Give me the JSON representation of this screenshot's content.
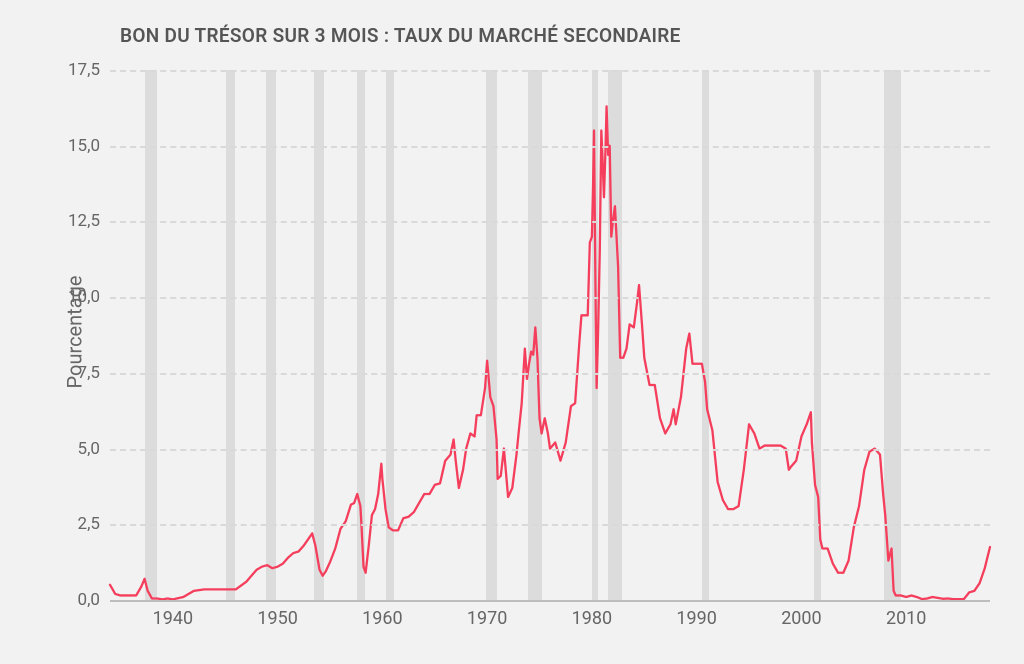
{
  "chart": {
    "type": "line",
    "title": "BON DU TRÉSOR SUR 3 MOIS : TAUX DU MARCHÉ SECONDAIRE",
    "ylabel": "Pourcentage",
    "title_fontsize": 19,
    "ylabel_fontsize": 20,
    "tick_fontsize": 17,
    "background_color": "#f2f2f2",
    "grid_color": "#d9d9d9",
    "axis_color": "#bdbdbd",
    "line_color": "#f43e5c",
    "line_width": 2.3,
    "band_color": "#dcdcdc",
    "xlim": [
      1934,
      2018
    ],
    "ylim": [
      0,
      17.5
    ],
    "ytick_step": 2.5,
    "ytick_labels": [
      "0,0",
      "2,5",
      "5,0",
      "7,5",
      "10,0",
      "12,5",
      "15,0",
      "17,5"
    ],
    "xtick_step": 10,
    "xtick_start": 1940,
    "xtick_end": 2010,
    "recession_bands": [
      [
        1937.3,
        1938.5
      ],
      [
        1945.1,
        1945.9
      ],
      [
        1948.9,
        1949.8
      ],
      [
        1953.5,
        1954.4
      ],
      [
        1957.6,
        1958.3
      ],
      [
        1960.3,
        1961.1
      ],
      [
        1969.9,
        1970.9
      ],
      [
        1973.9,
        1975.2
      ],
      [
        1980.0,
        1980.6
      ],
      [
        1981.5,
        1982.9
      ],
      [
        1990.5,
        1991.2
      ],
      [
        2001.2,
        2001.9
      ],
      [
        2007.9,
        2009.5
      ]
    ],
    "series": [
      {
        "x": 1934.0,
        "y": 0.5
      },
      {
        "x": 1934.5,
        "y": 0.2
      },
      {
        "x": 1935.0,
        "y": 0.15
      },
      {
        "x": 1935.5,
        "y": 0.15
      },
      {
        "x": 1936.0,
        "y": 0.15
      },
      {
        "x": 1936.5,
        "y": 0.15
      },
      {
        "x": 1937.0,
        "y": 0.45
      },
      {
        "x": 1937.3,
        "y": 0.7
      },
      {
        "x": 1937.6,
        "y": 0.3
      },
      {
        "x": 1938.0,
        "y": 0.05
      },
      {
        "x": 1938.5,
        "y": 0.05
      },
      {
        "x": 1939.0,
        "y": 0.02
      },
      {
        "x": 1939.5,
        "y": 0.05
      },
      {
        "x": 1940.0,
        "y": 0.02
      },
      {
        "x": 1941.0,
        "y": 0.1
      },
      {
        "x": 1942.0,
        "y": 0.3
      },
      {
        "x": 1943.0,
        "y": 0.35
      },
      {
        "x": 1944.0,
        "y": 0.35
      },
      {
        "x": 1945.0,
        "y": 0.35
      },
      {
        "x": 1946.0,
        "y": 0.35
      },
      {
        "x": 1947.0,
        "y": 0.6
      },
      {
        "x": 1947.5,
        "y": 0.8
      },
      {
        "x": 1948.0,
        "y": 1.0
      },
      {
        "x": 1948.5,
        "y": 1.1
      },
      {
        "x": 1949.0,
        "y": 1.15
      },
      {
        "x": 1949.5,
        "y": 1.05
      },
      {
        "x": 1950.0,
        "y": 1.1
      },
      {
        "x": 1950.5,
        "y": 1.2
      },
      {
        "x": 1951.0,
        "y": 1.4
      },
      {
        "x": 1951.5,
        "y": 1.55
      },
      {
        "x": 1952.0,
        "y": 1.6
      },
      {
        "x": 1952.5,
        "y": 1.8
      },
      {
        "x": 1953.0,
        "y": 2.05
      },
      {
        "x": 1953.3,
        "y": 2.2
      },
      {
        "x": 1953.6,
        "y": 1.8
      },
      {
        "x": 1954.0,
        "y": 1.0
      },
      {
        "x": 1954.3,
        "y": 0.8
      },
      {
        "x": 1954.6,
        "y": 0.95
      },
      {
        "x": 1955.0,
        "y": 1.25
      },
      {
        "x": 1955.5,
        "y": 1.7
      },
      {
        "x": 1956.0,
        "y": 2.35
      },
      {
        "x": 1956.5,
        "y": 2.6
      },
      {
        "x": 1957.0,
        "y": 3.15
      },
      {
        "x": 1957.3,
        "y": 3.2
      },
      {
        "x": 1957.6,
        "y": 3.5
      },
      {
        "x": 1957.9,
        "y": 3.1
      },
      {
        "x": 1958.0,
        "y": 2.5
      },
      {
        "x": 1958.2,
        "y": 1.1
      },
      {
        "x": 1958.4,
        "y": 0.9
      },
      {
        "x": 1958.7,
        "y": 1.8
      },
      {
        "x": 1959.0,
        "y": 2.8
      },
      {
        "x": 1959.3,
        "y": 3.0
      },
      {
        "x": 1959.6,
        "y": 3.5
      },
      {
        "x": 1959.9,
        "y": 4.5
      },
      {
        "x": 1960.0,
        "y": 4.0
      },
      {
        "x": 1960.3,
        "y": 3.0
      },
      {
        "x": 1960.6,
        "y": 2.4
      },
      {
        "x": 1961.0,
        "y": 2.3
      },
      {
        "x": 1961.5,
        "y": 2.3
      },
      {
        "x": 1962.0,
        "y": 2.7
      },
      {
        "x": 1962.5,
        "y": 2.75
      },
      {
        "x": 1963.0,
        "y": 2.9
      },
      {
        "x": 1963.5,
        "y": 3.2
      },
      {
        "x": 1964.0,
        "y": 3.5
      },
      {
        "x": 1964.5,
        "y": 3.5
      },
      {
        "x": 1965.0,
        "y": 3.8
      },
      {
        "x": 1965.5,
        "y": 3.85
      },
      {
        "x": 1966.0,
        "y": 4.6
      },
      {
        "x": 1966.5,
        "y": 4.8
      },
      {
        "x": 1966.8,
        "y": 5.3
      },
      {
        "x": 1967.0,
        "y": 4.6
      },
      {
        "x": 1967.3,
        "y": 3.7
      },
      {
        "x": 1967.7,
        "y": 4.3
      },
      {
        "x": 1968.0,
        "y": 5.0
      },
      {
        "x": 1968.4,
        "y": 5.5
      },
      {
        "x": 1968.8,
        "y": 5.4
      },
      {
        "x": 1969.0,
        "y": 6.1
      },
      {
        "x": 1969.4,
        "y": 6.1
      },
      {
        "x": 1969.8,
        "y": 7.0
      },
      {
        "x": 1970.0,
        "y": 7.9
      },
      {
        "x": 1970.3,
        "y": 6.7
      },
      {
        "x": 1970.6,
        "y": 6.4
      },
      {
        "x": 1970.9,
        "y": 5.3
      },
      {
        "x": 1971.0,
        "y": 4.0
      },
      {
        "x": 1971.3,
        "y": 4.1
      },
      {
        "x": 1971.6,
        "y": 5.0
      },
      {
        "x": 1972.0,
        "y": 3.4
      },
      {
        "x": 1972.4,
        "y": 3.7
      },
      {
        "x": 1972.8,
        "y": 4.8
      },
      {
        "x": 1973.0,
        "y": 5.5
      },
      {
        "x": 1973.3,
        "y": 6.5
      },
      {
        "x": 1973.6,
        "y": 8.3
      },
      {
        "x": 1973.8,
        "y": 7.3
      },
      {
        "x": 1974.0,
        "y": 7.8
      },
      {
        "x": 1974.2,
        "y": 8.2
      },
      {
        "x": 1974.4,
        "y": 8.1
      },
      {
        "x": 1974.6,
        "y": 9.0
      },
      {
        "x": 1974.8,
        "y": 8.0
      },
      {
        "x": 1975.0,
        "y": 6.0
      },
      {
        "x": 1975.2,
        "y": 5.5
      },
      {
        "x": 1975.5,
        "y": 6.0
      },
      {
        "x": 1975.8,
        "y": 5.5
      },
      {
        "x": 1976.0,
        "y": 5.0
      },
      {
        "x": 1976.5,
        "y": 5.2
      },
      {
        "x": 1977.0,
        "y": 4.6
      },
      {
        "x": 1977.5,
        "y": 5.2
      },
      {
        "x": 1978.0,
        "y": 6.4
      },
      {
        "x": 1978.4,
        "y": 6.5
      },
      {
        "x": 1978.8,
        "y": 8.5
      },
      {
        "x": 1979.0,
        "y": 9.4
      },
      {
        "x": 1979.3,
        "y": 9.4
      },
      {
        "x": 1979.6,
        "y": 9.4
      },
      {
        "x": 1979.8,
        "y": 11.8
      },
      {
        "x": 1980.0,
        "y": 12.0
      },
      {
        "x": 1980.1,
        "y": 13.5
      },
      {
        "x": 1980.2,
        "y": 15.5
      },
      {
        "x": 1980.35,
        "y": 10.0
      },
      {
        "x": 1980.45,
        "y": 7.0
      },
      {
        "x": 1980.6,
        "y": 9.0
      },
      {
        "x": 1980.75,
        "y": 11.5
      },
      {
        "x": 1980.9,
        "y": 15.5
      },
      {
        "x": 1981.0,
        "y": 14.7
      },
      {
        "x": 1981.15,
        "y": 13.3
      },
      {
        "x": 1981.3,
        "y": 14.9
      },
      {
        "x": 1981.4,
        "y": 16.3
      },
      {
        "x": 1981.55,
        "y": 14.7
      },
      {
        "x": 1981.7,
        "y": 15.0
      },
      {
        "x": 1981.85,
        "y": 12.0
      },
      {
        "x": 1982.0,
        "y": 12.5
      },
      {
        "x": 1982.2,
        "y": 13.0
      },
      {
        "x": 1982.35,
        "y": 12.0
      },
      {
        "x": 1982.5,
        "y": 11.0
      },
      {
        "x": 1982.7,
        "y": 8.0
      },
      {
        "x": 1982.9,
        "y": 8.0
      },
      {
        "x": 1983.0,
        "y": 8.0
      },
      {
        "x": 1983.3,
        "y": 8.3
      },
      {
        "x": 1983.6,
        "y": 9.1
      },
      {
        "x": 1984.0,
        "y": 9.0
      },
      {
        "x": 1984.3,
        "y": 9.8
      },
      {
        "x": 1984.5,
        "y": 10.4
      },
      {
        "x": 1984.8,
        "y": 9.0
      },
      {
        "x": 1985.0,
        "y": 8.0
      },
      {
        "x": 1985.5,
        "y": 7.1
      },
      {
        "x": 1986.0,
        "y": 7.1
      },
      {
        "x": 1986.5,
        "y": 6.0
      },
      {
        "x": 1987.0,
        "y": 5.5
      },
      {
        "x": 1987.5,
        "y": 5.8
      },
      {
        "x": 1987.8,
        "y": 6.3
      },
      {
        "x": 1988.0,
        "y": 5.8
      },
      {
        "x": 1988.5,
        "y": 6.7
      },
      {
        "x": 1989.0,
        "y": 8.3
      },
      {
        "x": 1989.3,
        "y": 8.8
      },
      {
        "x": 1989.6,
        "y": 7.8
      },
      {
        "x": 1990.0,
        "y": 7.8
      },
      {
        "x": 1990.5,
        "y": 7.8
      },
      {
        "x": 1990.8,
        "y": 7.2
      },
      {
        "x": 1991.0,
        "y": 6.3
      },
      {
        "x": 1991.5,
        "y": 5.6
      },
      {
        "x": 1992.0,
        "y": 3.9
      },
      {
        "x": 1992.5,
        "y": 3.3
      },
      {
        "x": 1993.0,
        "y": 3.0
      },
      {
        "x": 1993.5,
        "y": 3.0
      },
      {
        "x": 1994.0,
        "y": 3.1
      },
      {
        "x": 1994.5,
        "y": 4.3
      },
      {
        "x": 1995.0,
        "y": 5.8
      },
      {
        "x": 1995.5,
        "y": 5.5
      },
      {
        "x": 1996.0,
        "y": 5.0
      },
      {
        "x": 1996.5,
        "y": 5.1
      },
      {
        "x": 1997.0,
        "y": 5.1
      },
      {
        "x": 1997.5,
        "y": 5.1
      },
      {
        "x": 1998.0,
        "y": 5.1
      },
      {
        "x": 1998.5,
        "y": 5.0
      },
      {
        "x": 1998.8,
        "y": 4.3
      },
      {
        "x": 1999.0,
        "y": 4.4
      },
      {
        "x": 1999.5,
        "y": 4.6
      },
      {
        "x": 2000.0,
        "y": 5.4
      },
      {
        "x": 2000.5,
        "y": 5.8
      },
      {
        "x": 2000.9,
        "y": 6.2
      },
      {
        "x": 2001.0,
        "y": 5.2
      },
      {
        "x": 2001.3,
        "y": 3.8
      },
      {
        "x": 2001.6,
        "y": 3.4
      },
      {
        "x": 2001.8,
        "y": 2.0
      },
      {
        "x": 2002.0,
        "y": 1.7
      },
      {
        "x": 2002.5,
        "y": 1.7
      },
      {
        "x": 2003.0,
        "y": 1.2
      },
      {
        "x": 2003.5,
        "y": 0.9
      },
      {
        "x": 2004.0,
        "y": 0.9
      },
      {
        "x": 2004.5,
        "y": 1.3
      },
      {
        "x": 2005.0,
        "y": 2.4
      },
      {
        "x": 2005.5,
        "y": 3.1
      },
      {
        "x": 2006.0,
        "y": 4.3
      },
      {
        "x": 2006.5,
        "y": 4.9
      },
      {
        "x": 2007.0,
        "y": 5.0
      },
      {
        "x": 2007.5,
        "y": 4.8
      },
      {
        "x": 2007.8,
        "y": 3.5
      },
      {
        "x": 2008.0,
        "y": 2.8
      },
      {
        "x": 2008.3,
        "y": 1.3
      },
      {
        "x": 2008.6,
        "y": 1.7
      },
      {
        "x": 2008.8,
        "y": 0.3
      },
      {
        "x": 2009.0,
        "y": 0.15
      },
      {
        "x": 2009.5,
        "y": 0.15
      },
      {
        "x": 2010.0,
        "y": 0.1
      },
      {
        "x": 2010.5,
        "y": 0.15
      },
      {
        "x": 2011.0,
        "y": 0.1
      },
      {
        "x": 2011.5,
        "y": 0.03
      },
      {
        "x": 2012.0,
        "y": 0.05
      },
      {
        "x": 2012.5,
        "y": 0.1
      },
      {
        "x": 2013.0,
        "y": 0.07
      },
      {
        "x": 2013.5,
        "y": 0.04
      },
      {
        "x": 2014.0,
        "y": 0.05
      },
      {
        "x": 2014.5,
        "y": 0.03
      },
      {
        "x": 2015.0,
        "y": 0.03
      },
      {
        "x": 2015.5,
        "y": 0.03
      },
      {
        "x": 2015.9,
        "y": 0.2
      },
      {
        "x": 2016.0,
        "y": 0.25
      },
      {
        "x": 2016.5,
        "y": 0.3
      },
      {
        "x": 2017.0,
        "y": 0.55
      },
      {
        "x": 2017.5,
        "y": 1.05
      },
      {
        "x": 2018.0,
        "y": 1.75
      }
    ]
  }
}
